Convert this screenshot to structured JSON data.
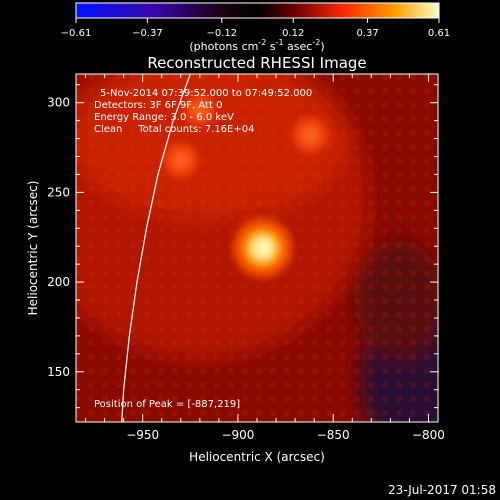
{
  "colorbar": {
    "ticks": [
      "-0.61",
      "-0.37",
      "-0.12",
      "0.12",
      "0.37",
      "0.61"
    ],
    "units_prefix": "(photons cm",
    "units_exp1": "-2",
    "units_mid": " s",
    "units_exp2": "-1",
    "units_mid2": " asec",
    "units_exp3": "-2",
    "units_suffix": ")"
  },
  "image": {
    "title": "Reconstructed RHESSI Image",
    "info_lines": [
      "5-Nov-2014 07:39:52.000 to 07:49:52.000",
      "Detectors: 3F 6F 9F, Att 0",
      "Energy Range: 3.0 - 6.0 keV",
      "Clean     Total counts: 7.16E+04"
    ],
    "peak_label": "Position of Peak = [-887,219]"
  },
  "timestamp": "23-Jul-2017 01:58",
  "chart_data": {
    "type": "heatmap",
    "title": "Reconstructed RHESSI Image",
    "xlabel": "Heliocentric X (arcsec)",
    "ylabel": "Heliocentric Y (arcsec)",
    "xlim": [
      -985,
      -795
    ],
    "ylim": [
      122,
      316
    ],
    "xticks": [
      -950,
      -900,
      -850,
      -800
    ],
    "yticks": [
      150,
      200,
      250,
      300
    ],
    "colorbar_range": [
      -0.61,
      0.61
    ],
    "peak_position": [
      -887,
      219
    ],
    "sources": [
      {
        "x": -887,
        "y": 219,
        "intensity": 0.61
      },
      {
        "x": -862,
        "y": 282,
        "intensity": 0.3
      },
      {
        "x": -930,
        "y": 268,
        "intensity": 0.28
      },
      {
        "x": -920,
        "y": 296,
        "intensity": 0.22
      }
    ],
    "limb_curve": [
      [
        -925,
        316
      ],
      [
        -934,
        290
      ],
      [
        -942,
        260
      ],
      [
        -948,
        230
      ],
      [
        -953,
        200
      ],
      [
        -957,
        170
      ],
      [
        -960,
        140
      ],
      [
        -961,
        122
      ]
    ]
  }
}
